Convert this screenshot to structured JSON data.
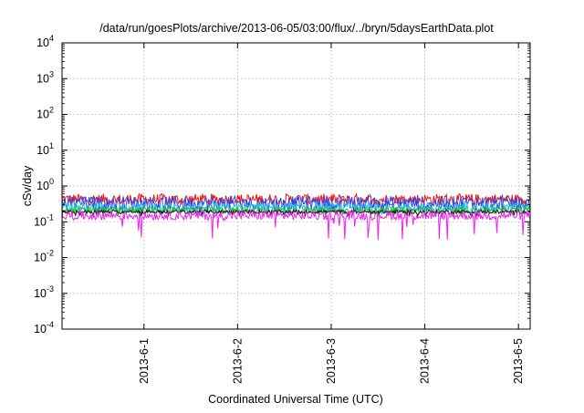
{
  "chart_data": {
    "type": "line",
    "title": "/data/run/goesPlots/archive/2013-06-05/03:00/flux/../bryn/5daysEarthData.plot",
    "xlabel": "Coordinated Universal Time (UTC)",
    "ylabel": "cSv/day",
    "yscale": "log",
    "ylim": [
      0.0001,
      10000
    ],
    "y_ticks": [
      {
        "value": 0.0001,
        "base": "10",
        "exp": "-4"
      },
      {
        "value": 0.001,
        "base": "10",
        "exp": "-3"
      },
      {
        "value": 0.01,
        "base": "10",
        "exp": "-2"
      },
      {
        "value": 0.1,
        "base": "10",
        "exp": "-1"
      },
      {
        "value": 1,
        "base": "10",
        "exp": "0"
      },
      {
        "value": 10,
        "base": "10",
        "exp": "1"
      },
      {
        "value": 100,
        "base": "10",
        "exp": "2"
      },
      {
        "value": 1000,
        "base": "10",
        "exp": "3"
      },
      {
        "value": 10000,
        "base": "10",
        "exp": "4"
      }
    ],
    "xlim": [
      "2013-05-31T03:00",
      "2013-06-05T03:00"
    ],
    "x_ticks": [
      {
        "value": "2013-06-01T00:00",
        "label": "2013-6-1"
      },
      {
        "value": "2013-06-02T00:00",
        "label": "2013-6-2"
      },
      {
        "value": "2013-06-03T00:00",
        "label": "2013-6-3"
      },
      {
        "value": "2013-06-04T00:00",
        "label": "2013-6-4"
      },
      {
        "value": "2013-06-05T00:00",
        "label": "2013-6-5"
      }
    ],
    "grid": true,
    "series": [
      {
        "color": "#ee1111",
        "level": 0.42,
        "noise": 0.16,
        "dips": 0.15
      },
      {
        "color": "#2a44ee",
        "level": 0.33,
        "noise": 0.2,
        "dips": 0.2
      },
      {
        "color": "#1dc4dc",
        "level": 0.25,
        "noise": 0.14,
        "dips": 0.2
      },
      {
        "color": "#22bb22",
        "level": 0.21,
        "noise": 0.08,
        "dips": 0.15
      },
      {
        "color": "#111111",
        "level": 0.19,
        "noise": 0.05,
        "dips": 0.1
      },
      {
        "color": "#ee22ee",
        "level": 0.15,
        "noise": 0.13,
        "dips": 0.5
      }
    ]
  }
}
